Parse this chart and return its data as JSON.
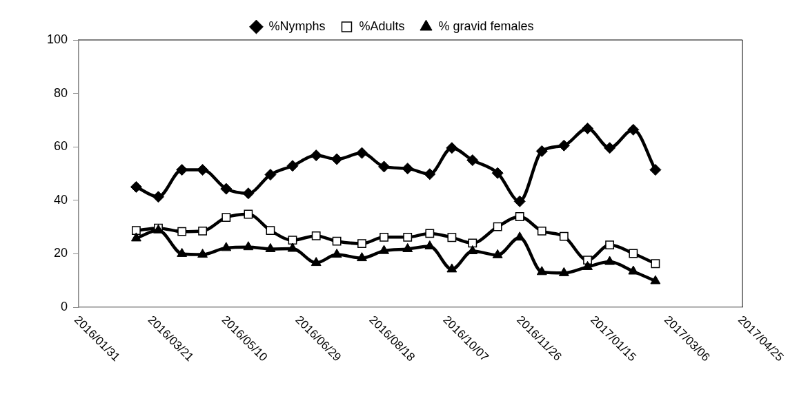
{
  "chart_data": {
    "type": "line",
    "x": [
      "2016-03-10",
      "2016-03-25",
      "2016-04-10",
      "2016-04-24",
      "2016-05-10",
      "2016-05-25",
      "2016-06-09",
      "2016-06-24",
      "2016-07-10",
      "2016-07-24",
      "2016-08-10",
      "2016-08-25",
      "2016-09-10",
      "2016-09-25",
      "2016-10-10",
      "2016-10-24",
      "2016-11-10",
      "2016-11-25",
      "2016-12-10",
      "2016-12-25",
      "2017-01-10",
      "2017-01-25",
      "2017-02-10",
      "2017-02-25"
    ],
    "series": [
      {
        "name": "%Nymphs",
        "color": "#000000",
        "marker": "diamond",
        "values": [
          45.0,
          41.3,
          51.4,
          51.4,
          44.3,
          42.6,
          49.6,
          52.9,
          56.8,
          55.4,
          57.7,
          52.6,
          51.9,
          49.8,
          59.6,
          55.0,
          50.2,
          39.6,
          58.4,
          60.5,
          66.9,
          59.6,
          66.4,
          51.4
        ]
      },
      {
        "name": "%Adults",
        "color": "#000000",
        "marker": "square",
        "values": [
          28.7,
          29.6,
          28.3,
          28.5,
          33.6,
          34.8,
          28.7,
          25.1,
          26.7,
          24.7,
          23.8,
          26.2,
          26.2,
          27.6,
          26.1,
          24.0,
          30.1,
          33.9,
          28.5,
          26.5,
          17.6,
          23.3,
          20.1,
          16.3
        ]
      },
      {
        "name": "% gravid females",
        "color": "#000000",
        "marker": "triangle",
        "values": [
          25.8,
          28.8,
          20.0,
          19.7,
          22.2,
          22.5,
          21.8,
          21.9,
          16.6,
          19.7,
          18.4,
          21.1,
          21.8,
          22.8,
          14.2,
          21.0,
          19.5,
          26.1,
          13.2,
          12.8,
          15.1,
          17.0,
          13.4,
          9.8
        ]
      }
    ],
    "xlim": [
      "2016-01-31",
      "2017-04-25"
    ],
    "xticks": [
      {
        "value": "2016-01-31",
        "label": "2016/01/31"
      },
      {
        "value": "2016-03-21",
        "label": "2016/03/21"
      },
      {
        "value": "2016-05-10",
        "label": "2016/05/10"
      },
      {
        "value": "2016-06-29",
        "label": "2016/06/29"
      },
      {
        "value": "2016-08-18",
        "label": "2016/08/18"
      },
      {
        "value": "2016-10-07",
        "label": "2016/10/07"
      },
      {
        "value": "2016-11-26",
        "label": "2016/11/26"
      },
      {
        "value": "2017-01-15",
        "label": "2017/01/15"
      },
      {
        "value": "2017-03-06",
        "label": "2017/03/06"
      },
      {
        "value": "2017-04-25",
        "label": "2017/04/25"
      }
    ],
    "ylim": [
      0,
      100
    ],
    "yticks": [
      0,
      20,
      40,
      60,
      80,
      100
    ],
    "legend": "top",
    "line_style": "solid"
  }
}
